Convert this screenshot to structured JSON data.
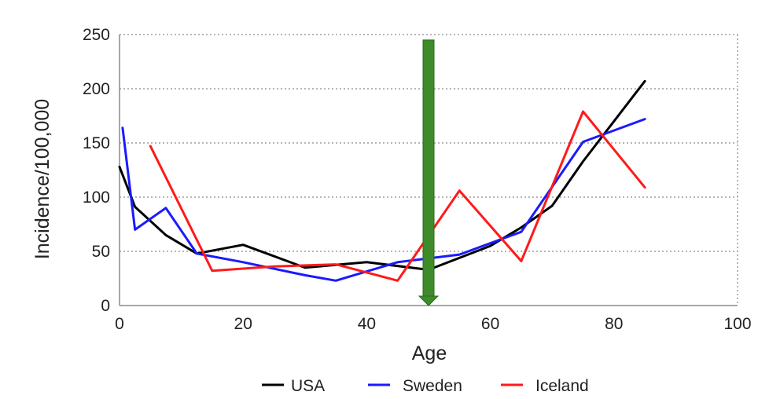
{
  "chart_data": {
    "type": "line",
    "title": "",
    "xlabel": "Age",
    "ylabel": "Incidence/100,000",
    "xlim": [
      0,
      100
    ],
    "ylim": [
      0,
      250
    ],
    "xticks": [
      0,
      20,
      40,
      60,
      80,
      100
    ],
    "yticks": [
      0,
      50,
      100,
      150,
      200,
      250
    ],
    "grid": "horizontal dotted",
    "legend_position": "bottom",
    "series": [
      {
        "name": "USA",
        "color": "#000000",
        "x": [
          0,
          2.5,
          7.5,
          12.5,
          20,
          30,
          40,
          50,
          60,
          65,
          70,
          75,
          80,
          85
        ],
        "y": [
          128,
          91,
          65,
          48,
          56,
          35,
          40,
          33,
          55,
          72,
          92,
          133,
          170,
          207
        ]
      },
      {
        "name": "Sweden",
        "color": "#1a1aff",
        "x": [
          0.5,
          2.5,
          7.5,
          12.5,
          20,
          30,
          35,
          45,
          55,
          65,
          75,
          85
        ],
        "y": [
          164,
          70,
          90,
          48,
          40,
          28,
          23,
          40,
          47,
          68,
          151,
          172
        ]
      },
      {
        "name": "Iceland",
        "color": "#ff1a1a",
        "x": [
          5,
          15,
          25,
          35,
          45,
          55,
          65,
          75,
          85
        ],
        "y": [
          147,
          32,
          36,
          38,
          23,
          106,
          41,
          179,
          109
        ]
      }
    ],
    "annotations": [
      {
        "type": "arrow",
        "direction": "down",
        "color": "#3d8b2a",
        "x": 50,
        "y_from": 245,
        "y_to": 0
      }
    ]
  }
}
